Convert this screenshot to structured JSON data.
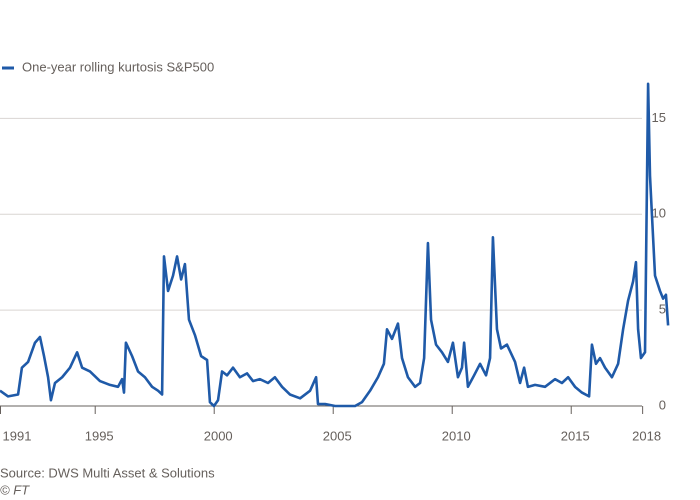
{
  "chart_data": {
    "type": "line",
    "legend_label": "One-year rolling kurtosis S&P500",
    "source": "Source: DWS Multi Asset & Solutions",
    "credit": "© FT",
    "x": [
      1991.0,
      1991.34,
      1991.76,
      1991.92,
      1992.18,
      1992.47,
      1992.68,
      1992.85,
      1993.02,
      1993.14,
      1993.31,
      1993.61,
      1993.94,
      1994.24,
      1994.45,
      1994.78,
      1995.2,
      1995.62,
      1995.96,
      1996.13,
      1996.21,
      1996.29,
      1996.55,
      1996.8,
      1997.09,
      1997.39,
      1997.64,
      1997.81,
      1997.89,
      1998.06,
      1998.27,
      1998.44,
      1998.61,
      1998.77,
      1998.94,
      1999.19,
      1999.45,
      1999.7,
      1999.82,
      1999.99,
      2000.16,
      2000.33,
      2000.54,
      2000.79,
      2001.08,
      2001.38,
      2001.63,
      2001.92,
      2002.26,
      2002.55,
      2002.85,
      2003.18,
      2003.61,
      2004.03,
      2004.28,
      2004.36,
      2004.66,
      2005.08,
      2005.5,
      2005.92,
      2006.21,
      2006.55,
      2006.88,
      2007.13,
      2007.26,
      2007.47,
      2007.72,
      2007.89,
      2008.14,
      2008.44,
      2008.65,
      2008.82,
      2008.98,
      2009.11,
      2009.32,
      2009.57,
      2009.82,
      2010.03,
      2010.24,
      2010.41,
      2010.5,
      2010.66,
      2010.92,
      2011.17,
      2011.42,
      2011.59,
      2011.71,
      2011.88,
      2012.05,
      2012.3,
      2012.64,
      2012.85,
      2013.02,
      2013.18,
      2013.48,
      2013.9,
      2014.32,
      2014.61,
      2014.87,
      2015.16,
      2015.45,
      2015.75,
      2015.87,
      2016.04,
      2016.21,
      2016.42,
      2016.71,
      2016.97,
      2017.18,
      2017.39,
      2017.6,
      2017.72,
      2017.81,
      2017.93,
      2018.1,
      2018.23,
      2018.31,
      2018.39,
      2018.52,
      2018.73,
      2018.86,
      2018.98,
      2019.07
    ],
    "series": [
      {
        "name": "One-year rolling kurtosis S&P500",
        "color": "#1f5aa8",
        "values": [
          0.8,
          0.5,
          0.6,
          2.0,
          2.3,
          3.3,
          3.6,
          2.6,
          1.5,
          0.3,
          1.2,
          1.5,
          2.0,
          2.8,
          2.0,
          1.8,
          1.3,
          1.1,
          1.0,
          1.4,
          0.7,
          3.3,
          2.6,
          1.8,
          1.5,
          1.0,
          0.8,
          0.6,
          7.8,
          6.0,
          6.8,
          7.8,
          6.6,
          7.4,
          4.5,
          3.7,
          2.6,
          2.4,
          0.2,
          0,
          0.3,
          1.8,
          1.6,
          2.0,
          1.5,
          1.7,
          1.3,
          1.4,
          1.2,
          1.5,
          1.0,
          0.6,
          0.4,
          0.8,
          1.5,
          0.1,
          0.1,
          0,
          0,
          0,
          0.2,
          0.8,
          1.5,
          2.2,
          4.0,
          3.5,
          4.3,
          2.5,
          1.5,
          1.0,
          1.2,
          2.5,
          8.5,
          4.5,
          3.2,
          2.8,
          2.3,
          3.3,
          1.5,
          2.0,
          3.3,
          1.0,
          1.6,
          2.2,
          1.6,
          2.5,
          8.8,
          4.0,
          3.0,
          3.2,
          2.3,
          1.2,
          2.0,
          1.0,
          1.1,
          1.0,
          1.4,
          1.2,
          1.5,
          1.0,
          0.7,
          0.5,
          3.2,
          2.2,
          2.5,
          2.0,
          1.5,
          2.2,
          4.0,
          5.5,
          6.5,
          7.5,
          4.0,
          2.5,
          2.8,
          16.8,
          12.0,
          10.0,
          6.8,
          6.0,
          5.6,
          5.8,
          4.2
        ]
      }
    ],
    "xlim": [
      1991,
      2019.15
    ],
    "xticks": [
      1991,
      1995,
      2000,
      2005,
      2010,
      2015,
      2018
    ],
    "ylim": [
      0,
      17
    ],
    "yticks": [
      0,
      5,
      10,
      15
    ],
    "grid": true
  }
}
